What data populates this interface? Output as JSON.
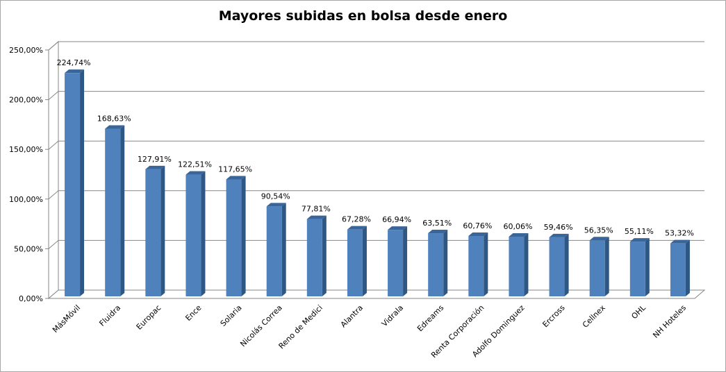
{
  "chart_data": {
    "type": "bar",
    "title": "Mayores subidas en bolsa desde enero",
    "xlabel": "",
    "ylabel": "",
    "ylim": [
      0,
      250
    ],
    "y_ticks": [
      0,
      50,
      100,
      150,
      200,
      250
    ],
    "y_tick_labels": [
      "0,00%",
      "50,00%",
      "100,00%",
      "150,00%",
      "200,00%",
      "250,00%"
    ],
    "grid": true,
    "legend": "none",
    "bar_color": "#4f81bd",
    "categories": [
      "MásMóvil",
      "Fluidra",
      "Europac",
      "Ence",
      "Solaria",
      "Nicolás Correa",
      "Reno de Medici",
      "Alantra",
      "Vidrala",
      "Edreams",
      "Renta Corporación",
      "Adolfo Dominguez",
      "Ercross",
      "Cellnex",
      "OHL",
      "NH Hoteles"
    ],
    "values": [
      224.74,
      168.63,
      127.91,
      122.51,
      117.65,
      90.54,
      77.81,
      67.28,
      66.94,
      63.51,
      60.76,
      60.06,
      59.46,
      56.35,
      55.11,
      53.32
    ],
    "value_labels": [
      "224,74%",
      "168,63%",
      "127,91%",
      "122,51%",
      "117,65%",
      "90,54%",
      "77,81%",
      "67,28%",
      "66,94%",
      "63,51%",
      "60,76%",
      "60,06%",
      "59,46%",
      "56,35%",
      "55,11%",
      "53,32%"
    ]
  }
}
